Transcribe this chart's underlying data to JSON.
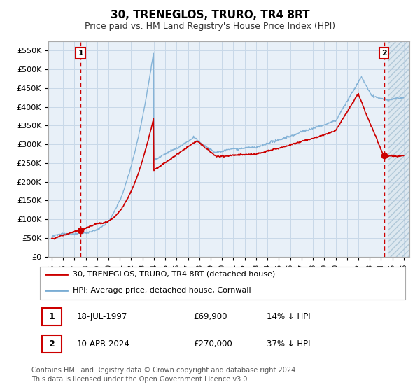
{
  "title": "30, TRENEGLOS, TRURO, TR4 8RT",
  "subtitle": "Price paid vs. HM Land Registry's House Price Index (HPI)",
  "hpi_color": "#7aadd4",
  "price_color": "#cc0000",
  "bg_color": "#ffffff",
  "chart_bg": "#e8f0f8",
  "grid_color": "#c8d8e8",
  "ylim": [
    0,
    575000
  ],
  "yticks": [
    0,
    50000,
    100000,
    150000,
    200000,
    250000,
    300000,
    350000,
    400000,
    450000,
    500000,
    550000
  ],
  "xlim_start": 1994.7,
  "xlim_end": 2026.5,
  "sale1_year": 1997.54,
  "sale1_price": 69900,
  "sale2_year": 2024.27,
  "sale2_price": 270000,
  "legend_line1": "30, TRENEGLOS, TRURO, TR4 8RT (detached house)",
  "legend_line2": "HPI: Average price, detached house, Cornwall",
  "table_row1": [
    "1",
    "18-JUL-1997",
    "£69,900",
    "14% ↓ HPI"
  ],
  "table_row2": [
    "2",
    "10-APR-2024",
    "£270,000",
    "37% ↓ HPI"
  ],
  "footer": "Contains HM Land Registry data © Crown copyright and database right 2024.\nThis data is licensed under the Open Government Licence v3.0.",
  "hatch_start": 2024.6
}
